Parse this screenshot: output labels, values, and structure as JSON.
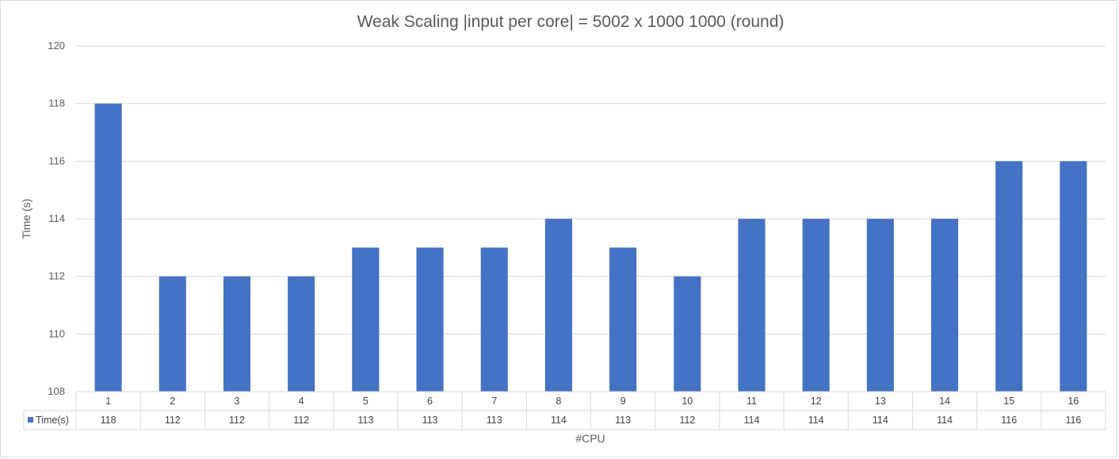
{
  "chart_data": {
    "type": "bar",
    "title": "Weak Scaling |input per core| = 5002 x 1000 1000 (round)",
    "xlabel": "#CPU",
    "ylabel": "Time (s)",
    "ylim": [
      108,
      120
    ],
    "yticks": [
      108,
      110,
      112,
      114,
      116,
      118,
      120
    ],
    "categories": [
      "1",
      "2",
      "3",
      "4",
      "5",
      "6",
      "7",
      "8",
      "9",
      "10",
      "11",
      "12",
      "13",
      "14",
      "15",
      "16"
    ],
    "series": [
      {
        "name": "Time(s)",
        "color": "#4472C4",
        "values": [
          118,
          112,
          112,
          112,
          113,
          113,
          113,
          114,
          113,
          112,
          114,
          114,
          114,
          114,
          116,
          116
        ]
      }
    ],
    "grid": true,
    "legend": "data-table"
  }
}
